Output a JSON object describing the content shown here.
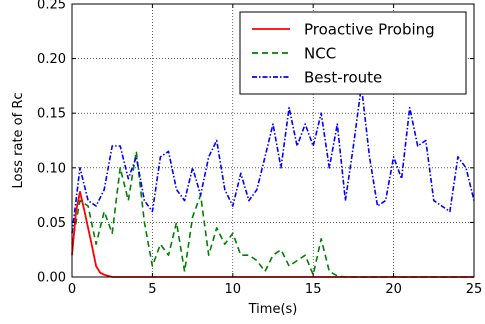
{
  "chart_data": {
    "type": "line",
    "title": "",
    "xlabel": "Time(s)",
    "ylabel": "Loss rate of Rc",
    "xlim": [
      0,
      25
    ],
    "ylim": [
      0,
      0.25
    ],
    "xticks": [
      0,
      5,
      10,
      15,
      20,
      25
    ],
    "xtick_labels": [
      "0",
      "5",
      "10",
      "15",
      "20",
      "25"
    ],
    "yticks": [
      0,
      0.05,
      0.1,
      0.15,
      0.2,
      0.25
    ],
    "ytick_labels": [
      "0.00",
      "0.05",
      "0.10",
      "0.15",
      "0.20",
      "0.25"
    ],
    "grid": true,
    "legend_position": "top-right",
    "series": [
      {
        "name": "Proactive Probing",
        "color": "#ff0000",
        "style": "solid",
        "x": [
          0,
          0.25,
          0.5,
          0.75,
          1.0,
          1.25,
          1.5,
          1.75,
          2.0,
          2.25,
          2.5,
          3,
          4,
          5,
          6,
          8,
          10,
          12,
          15,
          18,
          20,
          22,
          25
        ],
        "y": [
          0.02,
          0.06,
          0.078,
          0.062,
          0.045,
          0.028,
          0.01,
          0.004,
          0.002,
          0.001,
          0,
          0,
          0,
          0,
          0,
          0,
          0,
          0,
          0,
          0,
          0,
          0,
          0
        ]
      },
      {
        "name": "NCC",
        "color": "#008000",
        "style": "dashed",
        "x": [
          0,
          0.5,
          1.0,
          1.5,
          2.0,
          2.5,
          3.0,
          3.5,
          4.0,
          4.5,
          5.0,
          5.5,
          6.0,
          6.5,
          7.0,
          7.5,
          8.0,
          8.5,
          9.0,
          9.5,
          10.0,
          10.5,
          11.0,
          11.5,
          12.0,
          12.5,
          13.0,
          13.5,
          14.0,
          14.5,
          15.0,
          15.5,
          16.0,
          16.5,
          17.0,
          18,
          20,
          22,
          25
        ],
        "y": [
          0.03,
          0.07,
          0.065,
          0.03,
          0.06,
          0.04,
          0.1,
          0.07,
          0.115,
          0.05,
          0.01,
          0.03,
          0.02,
          0.05,
          0.005,
          0.055,
          0.075,
          0.02,
          0.045,
          0.03,
          0.04,
          0.02,
          0.02,
          0.015,
          0.005,
          0.02,
          0.025,
          0.01,
          0.015,
          0.02,
          0.002,
          0.035,
          0.005,
          0.001,
          0.0,
          0,
          0,
          0,
          0
        ]
      },
      {
        "name": "Best-route",
        "color": "#0000ff",
        "style": "dashdot",
        "x": [
          0,
          0.5,
          1.0,
          1.5,
          2.0,
          2.5,
          3.0,
          3.5,
          4.0,
          4.5,
          5.0,
          5.5,
          6.0,
          6.5,
          7.0,
          7.5,
          8.0,
          8.5,
          9.0,
          9.5,
          10.0,
          10.5,
          11.0,
          11.5,
          12.0,
          12.5,
          13.0,
          13.5,
          14.0,
          14.5,
          15.0,
          15.5,
          16.0,
          16.5,
          17.0,
          17.5,
          18.0,
          18.5,
          19.0,
          19.5,
          20.0,
          20.5,
          21.0,
          21.5,
          22.0,
          22.5,
          23.0,
          23.5,
          24.0,
          24.5,
          25.0
        ],
        "y": [
          0.04,
          0.1,
          0.07,
          0.065,
          0.08,
          0.12,
          0.12,
          0.09,
          0.11,
          0.07,
          0.06,
          0.11,
          0.115,
          0.08,
          0.07,
          0.1,
          0.075,
          0.11,
          0.125,
          0.08,
          0.065,
          0.095,
          0.07,
          0.08,
          0.11,
          0.14,
          0.1,
          0.155,
          0.12,
          0.14,
          0.12,
          0.15,
          0.1,
          0.14,
          0.07,
          0.12,
          0.175,
          0.11,
          0.065,
          0.07,
          0.11,
          0.09,
          0.155,
          0.12,
          0.125,
          0.07,
          0.065,
          0.06,
          0.11,
          0.1,
          0.07
        ]
      }
    ]
  }
}
